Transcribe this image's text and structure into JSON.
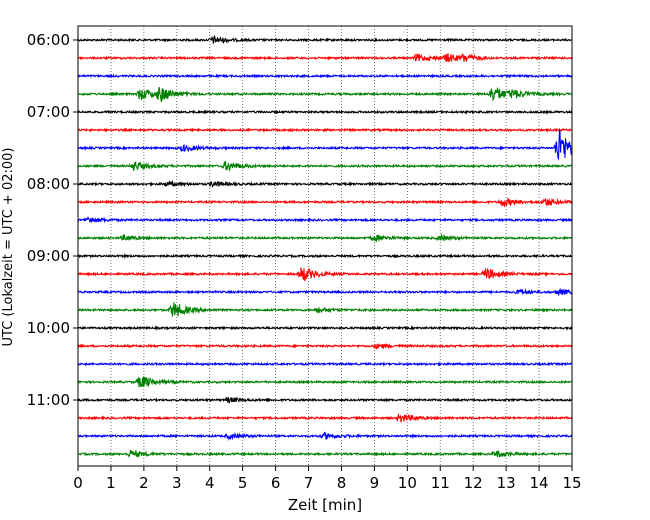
{
  "chart_data": {
    "type": "line",
    "title": "",
    "xlabel": "Zeit  [min]",
    "ylabel": "UTC (Lokalzeit = UTC + 02:00)",
    "xlim": [
      0,
      15
    ],
    "x_ticks": [
      "0",
      "1",
      "2",
      "3",
      "4",
      "5",
      "6",
      "7",
      "8",
      "9",
      "10",
      "11",
      "12",
      "13",
      "14",
      "15"
    ],
    "y_ticks": [
      "06:00",
      "07:00",
      "08:00",
      "09:00",
      "10:00",
      "11:00"
    ],
    "grid": "vertical dotted at each minute",
    "line_colors": [
      "#000000",
      "#ff0000",
      "#0000ff",
      "#008000"
    ],
    "series": [
      {
        "start": "06:00",
        "color": "#000000",
        "events": [
          {
            "t": 4.1,
            "amp": 0.6
          }
        ]
      },
      {
        "start": "06:15",
        "color": "#ff0000",
        "events": [
          {
            "t": 10.3,
            "amp": 0.6
          },
          {
            "t": 11.2,
            "amp": 0.7
          },
          {
            "t": 11.7,
            "amp": 0.5
          }
        ]
      },
      {
        "start": "06:30",
        "color": "#0000ff",
        "events": []
      },
      {
        "start": "06:45",
        "color": "#008000",
        "events": [
          {
            "t": 1.9,
            "amp": 1.0
          },
          {
            "t": 2.5,
            "amp": 1.2
          },
          {
            "t": 12.6,
            "amp": 1.4
          },
          {
            "t": 13.2,
            "amp": 0.6
          }
        ]
      },
      {
        "start": "07:00",
        "color": "#000000",
        "events": []
      },
      {
        "start": "07:15",
        "color": "#ff0000",
        "events": []
      },
      {
        "start": "07:30",
        "color": "#0000ff",
        "events": [
          {
            "t": 3.2,
            "amp": 0.5
          },
          {
            "t": 14.6,
            "amp": 3.2
          }
        ]
      },
      {
        "start": "07:45",
        "color": "#008000",
        "events": [
          {
            "t": 1.7,
            "amp": 0.8
          },
          {
            "t": 4.5,
            "amp": 0.8
          }
        ]
      },
      {
        "start": "08:00",
        "color": "#000000",
        "events": [
          {
            "t": 2.7,
            "amp": 0.4
          },
          {
            "t": 4.1,
            "amp": 0.4
          }
        ]
      },
      {
        "start": "08:15",
        "color": "#ff0000",
        "events": [
          {
            "t": 12.9,
            "amp": 0.7
          },
          {
            "t": 14.2,
            "amp": 0.6
          }
        ]
      },
      {
        "start": "08:30",
        "color": "#0000ff",
        "events": [
          {
            "t": 0.3,
            "amp": 0.5
          }
        ]
      },
      {
        "start": "08:45",
        "color": "#008000",
        "events": [
          {
            "t": 1.4,
            "amp": 0.4
          },
          {
            "t": 9.0,
            "amp": 0.5
          },
          {
            "t": 11.0,
            "amp": 0.4
          }
        ]
      },
      {
        "start": "09:00",
        "color": "#000000",
        "events": []
      },
      {
        "start": "09:15",
        "color": "#ff0000",
        "events": [
          {
            "t": 6.8,
            "amp": 1.3
          },
          {
            "t": 12.4,
            "amp": 1.0
          }
        ]
      },
      {
        "start": "09:30",
        "color": "#0000ff",
        "events": [
          {
            "t": 13.4,
            "amp": 0.4
          },
          {
            "t": 14.6,
            "amp": 0.5
          }
        ]
      },
      {
        "start": "09:45",
        "color": "#008000",
        "events": [
          {
            "t": 2.9,
            "amp": 1.4
          },
          {
            "t": 7.3,
            "amp": 0.4
          }
        ]
      },
      {
        "start": "10:00",
        "color": "#000000",
        "events": []
      },
      {
        "start": "10:15",
        "color": "#ff0000",
        "events": [
          {
            "t": 9.1,
            "amp": 0.4
          }
        ]
      },
      {
        "start": "10:30",
        "color": "#0000ff",
        "events": []
      },
      {
        "start": "10:45",
        "color": "#008000",
        "events": [
          {
            "t": 1.9,
            "amp": 1.1
          }
        ]
      },
      {
        "start": "11:00",
        "color": "#000000",
        "events": [
          {
            "t": 4.6,
            "amp": 0.4
          }
        ]
      },
      {
        "start": "11:15",
        "color": "#ff0000",
        "events": [
          {
            "t": 9.8,
            "amp": 0.7
          }
        ]
      },
      {
        "start": "11:30",
        "color": "#0000ff",
        "events": [
          {
            "t": 4.6,
            "amp": 0.4
          },
          {
            "t": 7.5,
            "amp": 0.5
          }
        ]
      },
      {
        "start": "11:45",
        "color": "#008000",
        "events": [
          {
            "t": 1.6,
            "amp": 0.6
          },
          {
            "t": 12.7,
            "amp": 0.5
          }
        ]
      }
    ]
  }
}
